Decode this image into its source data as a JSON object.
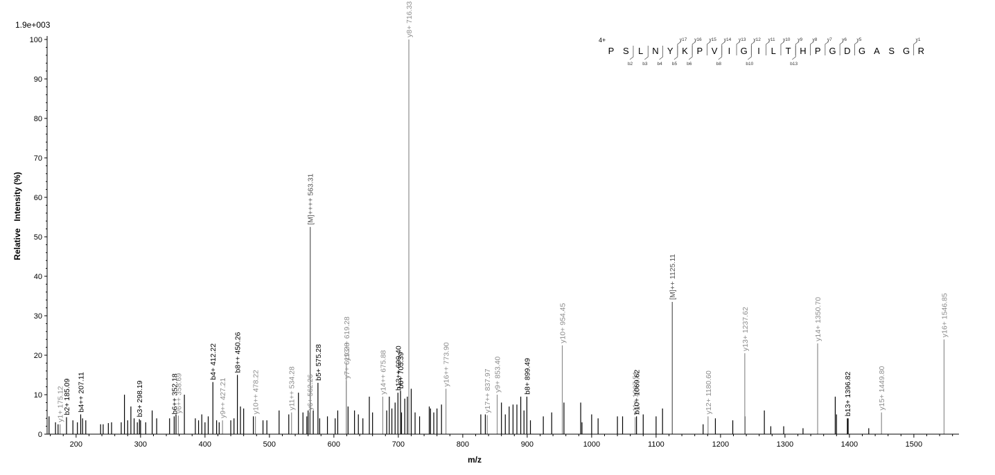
{
  "chart_data": {
    "type": "bar",
    "scale_label": "1.9e+003",
    "xlabel": "m/z",
    "ylabel": "Relative   Intensity (%)",
    "xlim": [
      155,
      1570
    ],
    "ylim": [
      0,
      100
    ],
    "x_ticks": [
      200,
      300,
      400,
      500,
      600,
      700,
      800,
      900,
      1000,
      1100,
      1200,
      1300,
      1400,
      1500
    ],
    "y_ticks": [
      0,
      10,
      20,
      30,
      40,
      50,
      60,
      70,
      80,
      90,
      100
    ],
    "grid": false,
    "colors": {
      "unlabeled": "#000000",
      "b_ion": "#000000",
      "y_ion": "#8c8c8c",
      "precursor": "#555555"
    },
    "annotated_peaks": [
      {
        "x": 175.12,
        "y": 2.5,
        "label": "y1+ 175.12",
        "kind": "y"
      },
      {
        "x": 185.09,
        "y": 4.3,
        "label": "b2+ 185.09",
        "kind": "b"
      },
      {
        "x": 207.11,
        "y": 5.0,
        "label": "b4++ 207.11",
        "kind": "b"
      },
      {
        "x": 298.19,
        "y": 3.8,
        "label": "b3+ 298.19",
        "kind": "b"
      },
      {
        "x": 352.18,
        "y": 4.5,
        "label": "b6++ 352.18",
        "kind": "b"
      },
      {
        "x": 358.69,
        "y": 4.7,
        "label": "y6++ 358.69",
        "kind": "y"
      },
      {
        "x": 412.22,
        "y": 13.2,
        "label": "b4+ 412.22",
        "kind": "b"
      },
      {
        "x": 427.21,
        "y": 3.5,
        "label": "y9++ 427.21",
        "kind": "y"
      },
      {
        "x": 450.26,
        "y": 15.0,
        "label": "b8++ 450.26",
        "kind": "b"
      },
      {
        "x": 478.22,
        "y": 4.5,
        "label": "y10++ 478.22",
        "kind": "y"
      },
      {
        "x": 534.28,
        "y": 5.5,
        "label": "y11++ 534.28",
        "kind": "y"
      },
      {
        "x": 563.31,
        "y": 52.5,
        "label": "[M]++++ 563.31",
        "kind": "m"
      },
      {
        "x": 562.26,
        "y": 5.5,
        "label": "y6+ 562.26",
        "kind": "y"
      },
      {
        "x": 575.28,
        "y": 13.0,
        "label": "b5+ 575.28",
        "kind": "b"
      },
      {
        "x": 619.28,
        "y": 18.0,
        "label": "y13++ 619.28",
        "kind": "y"
      },
      {
        "x": 619.28,
        "y": 13.5,
        "label": "y7+ 619.28",
        "kind": "y"
      },
      {
        "x": 675.88,
        "y": 9.5,
        "label": "y14++ 675.88",
        "kind": "y"
      },
      {
        "x": 699.4,
        "y": 10.5,
        "label": "b13++ 699.40",
        "kind": "b"
      },
      {
        "x": 703.39,
        "y": 11.0,
        "label": "b6+ 703.39",
        "kind": "b"
      },
      {
        "x": 716.33,
        "y": 100.0,
        "label": "y8+ 716.33",
        "kind": "y"
      },
      {
        "x": 773.9,
        "y": 11.5,
        "label": "y16++ 773.90",
        "kind": "y"
      },
      {
        "x": 837.97,
        "y": 4.8,
        "label": "y17++ 837.97",
        "kind": "y"
      },
      {
        "x": 853.4,
        "y": 10.0,
        "label": "y9+ 853.40",
        "kind": "y"
      },
      {
        "x": 899.49,
        "y": 9.5,
        "label": "b8+ 899.49",
        "kind": "b"
      },
      {
        "x": 954.45,
        "y": 22.5,
        "label": "y10+ 954.45",
        "kind": "y"
      },
      {
        "x": 1067.51,
        "y": 4.3,
        "label": "y11+ 1067.51",
        "kind": "y"
      },
      {
        "x": 1069.62,
        "y": 4.5,
        "label": "b10+ 1069.62",
        "kind": "b"
      },
      {
        "x": 1125.11,
        "y": 33.5,
        "label": "[M]++ 1125.11",
        "kind": "m"
      },
      {
        "x": 1180.6,
        "y": 4.5,
        "label": "y12+ 1180.60",
        "kind": "y"
      },
      {
        "x": 1237.62,
        "y": 20.5,
        "label": "y13+ 1237.62",
        "kind": "y"
      },
      {
        "x": 1350.7,
        "y": 23.0,
        "label": "y14+ 1350.70",
        "kind": "y"
      },
      {
        "x": 1396.82,
        "y": 4.0,
        "label": "b13+ 1396.82",
        "kind": "b"
      },
      {
        "x": 1449.8,
        "y": 5.5,
        "label": "y15+ 1449.80",
        "kind": "y"
      },
      {
        "x": 1546.85,
        "y": 24.0,
        "label": "y16+ 1546.85",
        "kind": "y"
      }
    ],
    "unlabeled_peaks": [
      [
        158,
        4.5
      ],
      [
        168,
        3
      ],
      [
        172,
        2.5
      ],
      [
        195,
        3.5
      ],
      [
        202,
        3
      ],
      [
        210,
        4
      ],
      [
        215,
        3.5
      ],
      [
        238,
        2.5
      ],
      [
        242,
        2.5
      ],
      [
        250,
        2.8
      ],
      [
        255,
        3
      ],
      [
        270,
        3
      ],
      [
        275,
        10
      ],
      [
        280,
        3.5
      ],
      [
        285,
        7
      ],
      [
        290,
        4
      ],
      [
        295,
        3
      ],
      [
        300,
        3.5
      ],
      [
        308,
        3
      ],
      [
        318,
        6
      ],
      [
        325,
        4
      ],
      [
        345,
        4
      ],
      [
        355,
        5
      ],
      [
        368,
        10
      ],
      [
        385,
        4
      ],
      [
        390,
        3.5
      ],
      [
        395,
        5
      ],
      [
        400,
        3
      ],
      [
        405,
        4.5
      ],
      [
        418,
        3.5
      ],
      [
        422,
        3
      ],
      [
        440,
        3.5
      ],
      [
        445,
        4
      ],
      [
        455,
        7
      ],
      [
        460,
        6.5
      ],
      [
        475,
        4.5
      ],
      [
        490,
        3.5
      ],
      [
        496,
        3.5
      ],
      [
        515,
        6
      ],
      [
        530,
        5
      ],
      [
        545,
        10.5
      ],
      [
        552,
        5.5
      ],
      [
        558,
        4.5
      ],
      [
        560,
        6
      ],
      [
        568,
        6
      ],
      [
        578,
        4
      ],
      [
        590,
        4.5
      ],
      [
        602,
        4
      ],
      [
        606,
        6
      ],
      [
        622,
        7
      ],
      [
        632,
        6
      ],
      [
        638,
        5
      ],
      [
        645,
        4
      ],
      [
        655,
        9.5
      ],
      [
        660,
        5.5
      ],
      [
        682,
        6
      ],
      [
        686,
        9.5
      ],
      [
        690,
        6.5
      ],
      [
        695,
        8
      ],
      [
        705,
        5.5
      ],
      [
        710,
        9
      ],
      [
        714,
        9.5
      ],
      [
        720,
        11.5
      ],
      [
        726,
        5.5
      ],
      [
        733,
        4.5
      ],
      [
        748,
        7
      ],
      [
        750,
        6.5
      ],
      [
        755,
        5.5
      ],
      [
        760,
        6.5
      ],
      [
        767,
        7.5
      ],
      [
        828,
        5
      ],
      [
        835,
        5
      ],
      [
        860,
        8
      ],
      [
        866,
        5
      ],
      [
        872,
        7
      ],
      [
        878,
        7.5
      ],
      [
        884,
        7.5
      ],
      [
        890,
        9.5
      ],
      [
        895,
        6
      ],
      [
        905,
        3.5
      ],
      [
        925,
        4.5
      ],
      [
        938,
        5.5
      ],
      [
        957,
        8
      ],
      [
        983,
        8
      ],
      [
        985,
        3
      ],
      [
        1000,
        5
      ],
      [
        1010,
        4
      ],
      [
        1040,
        4.5
      ],
      [
        1048,
        4.5
      ],
      [
        1080,
        5
      ],
      [
        1100,
        4.5
      ],
      [
        1110,
        6.5
      ],
      [
        1173,
        2.5
      ],
      [
        1192,
        4
      ],
      [
        1219,
        3.5
      ],
      [
        1238,
        4.5
      ],
      [
        1268,
        6
      ],
      [
        1278,
        2
      ],
      [
        1298,
        2
      ],
      [
        1328,
        1.5
      ],
      [
        1378,
        9.5
      ],
      [
        1380,
        5
      ],
      [
        1398,
        4
      ],
      [
        1430,
        1.5
      ]
    ],
    "sequence": {
      "charge": "4+",
      "residues": [
        "P",
        "S",
        "L",
        "N",
        "Y",
        "K",
        "P",
        "V",
        "I",
        "G",
        "I",
        "L",
        "T",
        "H",
        "P",
        "G",
        "D",
        "G",
        "A",
        "S",
        "G",
        "R"
      ],
      "y_ions": [
        {
          "label": "y17",
          "after": 4
        },
        {
          "label": "y16",
          "after": 5
        },
        {
          "label": "y15",
          "after": 6
        },
        {
          "label": "y14",
          "after": 7
        },
        {
          "label": "y13",
          "after": 8
        },
        {
          "label": "y12",
          "after": 9
        },
        {
          "label": "y11",
          "after": 10
        },
        {
          "label": "y10",
          "after": 11
        },
        {
          "label": "y9",
          "after": 12
        },
        {
          "label": "y8",
          "after": 13
        },
        {
          "label": "y7",
          "after": 14
        },
        {
          "label": "y6",
          "after": 15
        },
        {
          "label": "y5",
          "after": 16
        },
        {
          "label": "y1",
          "after": 20
        }
      ],
      "b_ions": [
        {
          "label": "b2",
          "after": 1
        },
        {
          "label": "b3",
          "after": 2
        },
        {
          "label": "b4",
          "after": 3
        },
        {
          "label": "b5",
          "after": 4
        },
        {
          "label": "b6",
          "after": 5
        },
        {
          "label": "b8",
          "after": 7
        },
        {
          "label": "b10",
          "after": 9
        },
        {
          "label": "b13",
          "after": 12
        }
      ]
    }
  }
}
